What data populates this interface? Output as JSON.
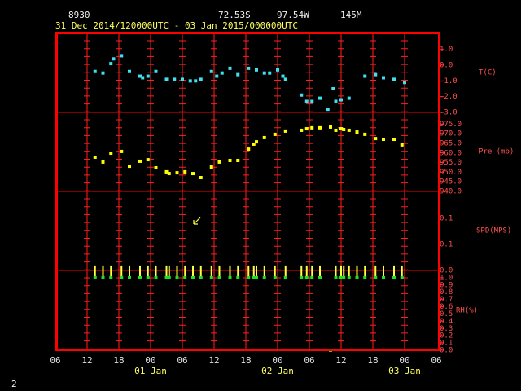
{
  "header": {
    "station": "8930",
    "lat": "72.53S",
    "lon": "97.54W",
    "elev": "145M",
    "period": "31 Dec 2014/120000UTC - 03 Jan 2015/000000UTC",
    "page": "2"
  },
  "x_axis": {
    "xlim": [
      0,
      72
    ],
    "xticks": [
      {
        "value": 0,
        "label": "06"
      },
      {
        "value": 6,
        "label": "12"
      },
      {
        "value": 12,
        "label": "18"
      },
      {
        "value": 18,
        "label": "00"
      },
      {
        "value": 24,
        "label": "06"
      },
      {
        "value": 30,
        "label": "12"
      },
      {
        "value": 36,
        "label": "18"
      },
      {
        "value": 42,
        "label": "00"
      },
      {
        "value": 48,
        "label": "06"
      },
      {
        "value": 54,
        "label": "12"
      },
      {
        "value": 60,
        "label": "18"
      },
      {
        "value": 66,
        "label": "00"
      },
      {
        "value": 72,
        "label": "06"
      }
    ],
    "date_ticks": [
      {
        "value": 18,
        "label": "01 Jan"
      },
      {
        "value": 42,
        "label": "02 Jan"
      },
      {
        "value": 66,
        "label": "03 Jan"
      }
    ]
  },
  "chart_data": [
    {
      "type": "scatter",
      "ylabel": "T(C)",
      "color": "#40e0f0",
      "ylim": [
        -3,
        2.07
      ],
      "yticks": [
        {
          "value": -3,
          "label": "-3.0"
        },
        {
          "value": -2,
          "label": "-2.0"
        },
        {
          "value": -1,
          "label": "-1.0"
        },
        {
          "value": 0,
          "label": "0.0"
        },
        {
          "value": 1,
          "label": "1.0"
        }
      ],
      "x": [
        7.5,
        9,
        10.5,
        11,
        12.5,
        14,
        16,
        16.5,
        17.5,
        19,
        21,
        22.5,
        24,
        25.5,
        26.5,
        27.5,
        29.5,
        30.5,
        31.5,
        33,
        34.5,
        36.5,
        38,
        39.5,
        40.5,
        42,
        43,
        43.5,
        46.5,
        47.5,
        48.5,
        50,
        51.5,
        52.5,
        53,
        54,
        55.5,
        58.5,
        60.5,
        62,
        64,
        66
      ],
      "values": [
        -0.4,
        -0.5,
        0.1,
        0.4,
        0.6,
        -0.4,
        -0.7,
        -0.8,
        -0.7,
        -0.4,
        -0.9,
        -0.9,
        -0.9,
        -1.0,
        -1.0,
        -0.9,
        -0.4,
        -0.7,
        -0.5,
        -0.2,
        -0.6,
        -0.2,
        -0.3,
        -0.5,
        -0.5,
        -0.3,
        -0.7,
        -0.9,
        -1.9,
        -2.3,
        -2.3,
        -2.1,
        -2.8,
        -1.5,
        -2.3,
        -2.2,
        -2.1,
        -0.7,
        -0.6,
        -0.8,
        -0.9,
        -1.1
      ]
    },
    {
      "type": "scatter",
      "ylabel": "Pre (mb)",
      "color": "#ffff00",
      "ylim": [
        940,
        981.1
      ],
      "yticks": [
        {
          "value": 940,
          "label": "940.0"
        },
        {
          "value": 945,
          "label": "945.0"
        },
        {
          "value": 950,
          "label": "950.0"
        },
        {
          "value": 955,
          "label": "955.0"
        },
        {
          "value": 960,
          "label": "960.0"
        },
        {
          "value": 965,
          "label": "965.0"
        },
        {
          "value": 970,
          "label": "970.0"
        },
        {
          "value": 975,
          "label": "975.0"
        }
      ],
      "x": [
        7.5,
        9,
        10.5,
        12.5,
        14,
        16,
        17.5,
        19,
        21,
        21.5,
        23,
        24.5,
        26,
        27.5,
        29.5,
        31,
        33,
        34.5,
        36.5,
        37.5,
        38,
        39.5,
        41.5,
        43.5,
        46.5,
        47.5,
        48.5,
        50,
        52,
        53,
        54,
        54.5,
        55.5,
        57,
        58.5,
        60.5,
        62,
        64,
        65.5
      ],
      "values": [
        957.8,
        955.3,
        959.9,
        960.8,
        953.1,
        955.7,
        956.5,
        952.3,
        950.2,
        949.3,
        949.7,
        950.2,
        949.3,
        947.2,
        952.7,
        955.3,
        956.1,
        956.1,
        962.0,
        964.6,
        965.8,
        968.0,
        969.7,
        971.4,
        971.8,
        972.6,
        973.1,
        973.1,
        973.5,
        971.8,
        972.6,
        972.2,
        971.8,
        970.9,
        969.7,
        967.5,
        967.1,
        967.1,
        964.2
      ]
    },
    {
      "type": "wind",
      "ylabel": "SPD(MPS)",
      "tick_labels": [
        "0.1",
        "0.1"
      ]
    },
    {
      "type": "rh",
      "ylabel": "RH(%)",
      "color": "#20e020",
      "bar_color": "#ffff40",
      "ylim": [
        0,
        1.1
      ],
      "top_label": "0.0",
      "yticks": [
        {
          "value": 0,
          "label": "0.0"
        },
        {
          "value": 0.1,
          "label": "0.1"
        },
        {
          "value": 0.2,
          "label": "0.2"
        },
        {
          "value": 0.3,
          "label": "0.3"
        },
        {
          "value": 0.4,
          "label": "0.4"
        },
        {
          "value": 0.5,
          "label": "0.5"
        },
        {
          "value": 0.6,
          "label": "0.6"
        },
        {
          "value": 0.7,
          "label": "0.7"
        },
        {
          "value": 0.8,
          "label": "0.8"
        },
        {
          "value": 0.9,
          "label": "0.9"
        },
        {
          "value": 1,
          "label": "1.0"
        }
      ],
      "x": [
        7.5,
        9,
        10.5,
        12.5,
        14,
        16,
        17.5,
        19,
        21,
        21.5,
        23,
        24.5,
        26,
        27.5,
        29.5,
        31,
        33,
        34.5,
        36.5,
        37.5,
        38,
        39.5,
        41.5,
        43.5,
        46.5,
        47.5,
        48.5,
        50,
        52,
        53,
        54,
        54.5,
        55.5,
        57,
        58.5,
        60.5,
        62,
        64,
        65.5
      ],
      "values": [
        1,
        1,
        1,
        1,
        1,
        1,
        1,
        1,
        1,
        1,
        1,
        1,
        1,
        1,
        1,
        1,
        1,
        1,
        1,
        1,
        1,
        1,
        1,
        1,
        1,
        1,
        1,
        1,
        0,
        1,
        1,
        1,
        1,
        1,
        1,
        1,
        1,
        1,
        1
      ]
    }
  ]
}
